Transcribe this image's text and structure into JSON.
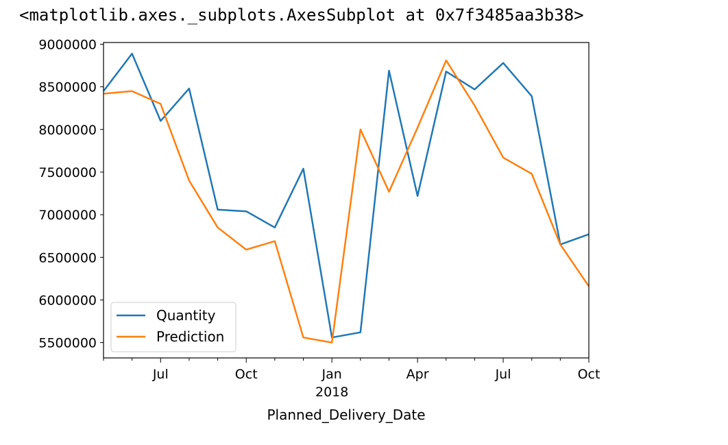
{
  "output_repr": "<matplotlib.axes._subplots.AxesSubplot at 0x7f3485aa3b38>",
  "chart_data": {
    "type": "line",
    "title": "",
    "xlabel": "Planned_Delivery_Date",
    "ylabel": "",
    "x": [
      "2017-05",
      "2017-06",
      "2017-07",
      "2017-08",
      "2017-09",
      "2017-10",
      "2017-11",
      "2017-12",
      "2018-01",
      "2018-02",
      "2018-03",
      "2018-04",
      "2018-05",
      "2018-06",
      "2018-07",
      "2018-08",
      "2018-09",
      "2018-10"
    ],
    "xlim": [
      "2017-05",
      "2018-10"
    ],
    "ylim": [
      5320000,
      9020000
    ],
    "yticks": [
      5500000,
      6000000,
      6500000,
      7000000,
      7500000,
      8000000,
      8500000,
      9000000
    ],
    "ytick_labels": [
      "5500000",
      "6000000",
      "6500000",
      "7000000",
      "7500000",
      "8000000",
      "8500000",
      "9000000"
    ],
    "xticks": [
      {
        "x": "2017-07",
        "label": "Jul",
        "sub": ""
      },
      {
        "x": "2017-10",
        "label": "Oct",
        "sub": ""
      },
      {
        "x": "2018-01",
        "label": "Jan",
        "sub": "2018"
      },
      {
        "x": "2018-04",
        "label": "Apr",
        "sub": ""
      },
      {
        "x": "2018-07",
        "label": "Jul",
        "sub": ""
      },
      {
        "x": "2018-10",
        "label": "Oct",
        "sub": ""
      }
    ],
    "legend_position": "lower-left",
    "grid": false,
    "series": [
      {
        "name": "Quantity",
        "color": "#1f77b4",
        "values": [
          8450000,
          8890000,
          8100000,
          8480000,
          7060000,
          7040000,
          6850000,
          7540000,
          5560000,
          5620000,
          8690000,
          7220000,
          8680000,
          8470000,
          8780000,
          8390000,
          6650000,
          6770000
        ]
      },
      {
        "name": "Prediction",
        "color": "#ff7f0e",
        "values": [
          8420000,
          8450000,
          8300000,
          7400000,
          6850000,
          6590000,
          6690000,
          5560000,
          5500000,
          8000000,
          7270000,
          8020000,
          8810000,
          8280000,
          7670000,
          7480000,
          6650000,
          6160000
        ]
      }
    ]
  }
}
